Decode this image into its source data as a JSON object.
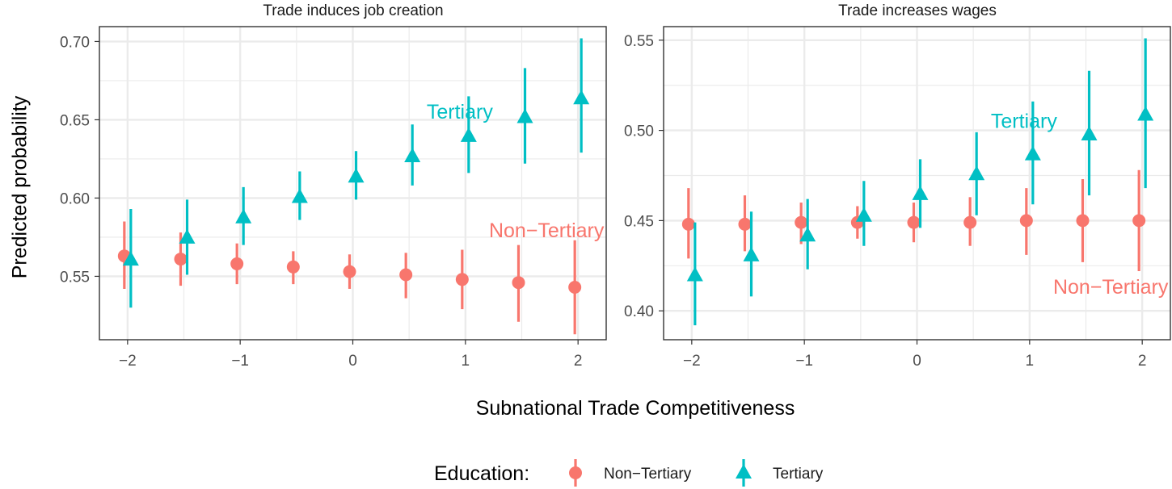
{
  "figure": {
    "ylabel": "Predicted probability",
    "xlabel": "Subnational Trade Competitiveness",
    "legend": {
      "title": "Education:",
      "items": [
        "Non−Tertiary",
        "Tertiary"
      ]
    }
  },
  "colors": {
    "non_tertiary": "#F8766D",
    "tertiary": "#00BFC4",
    "grid": "#EBEBEB",
    "frame": "#333333",
    "text": "#1A1A1A",
    "ticks": "#4D4D4D"
  },
  "chart_data": [
    {
      "type": "scatter",
      "title": "Trade induces job creation",
      "xlabel": "Subnational Trade Competitiveness",
      "ylabel": "Predicted probability",
      "xlim": [
        -2.25,
        2.25
      ],
      "ylim": [
        0.5095,
        0.7095
      ],
      "xticks": [
        -2,
        -1,
        0,
        1,
        2
      ],
      "xtick_labels": [
        "−2",
        "−1",
        "0",
        "1",
        "2"
      ],
      "yticks": [
        0.55,
        0.6,
        0.65,
        0.7
      ],
      "ytick_labels": [
        "0.55",
        "0.60",
        "0.65",
        "0.70"
      ],
      "grid": true,
      "x": [
        -2,
        -1.5,
        -1,
        -0.5,
        0,
        0.5,
        1,
        1.5,
        2
      ],
      "series": [
        {
          "name": "Non−Tertiary",
          "marker": "circle",
          "values": [
            0.563,
            0.561,
            0.558,
            0.556,
            0.553,
            0.551,
            0.548,
            0.546,
            0.543
          ],
          "lower": [
            0.542,
            0.544,
            0.545,
            0.545,
            0.542,
            0.536,
            0.529,
            0.521,
            0.513
          ],
          "upper": [
            0.585,
            0.578,
            0.571,
            0.566,
            0.564,
            0.565,
            0.567,
            0.57,
            0.573
          ]
        },
        {
          "name": "Tertiary",
          "marker": "triangle",
          "values": [
            0.561,
            0.575,
            0.588,
            0.601,
            0.614,
            0.627,
            0.64,
            0.652,
            0.664
          ],
          "lower": [
            0.53,
            0.551,
            0.57,
            0.586,
            0.599,
            0.608,
            0.616,
            0.622,
            0.629
          ],
          "upper": [
            0.593,
            0.599,
            0.607,
            0.617,
            0.63,
            0.647,
            0.665,
            0.683,
            0.702
          ]
        }
      ],
      "annotations": [
        {
          "text": "Tertiary",
          "x": 0.95,
          "y": 0.6555,
          "series": "Tertiary"
        },
        {
          "text": "Non−Tertiary",
          "x": 1.72,
          "y": 0.5795,
          "series": "Non−Tertiary"
        }
      ]
    },
    {
      "type": "scatter",
      "title": "Trade increases wages",
      "xlabel": "Subnational Trade Competitiveness",
      "ylabel": "Predicted probability",
      "xlim": [
        -2.25,
        2.25
      ],
      "ylim": [
        0.384,
        0.5575
      ],
      "xticks": [
        -2,
        -1,
        0,
        1,
        2
      ],
      "xtick_labels": [
        "−2",
        "−1",
        "0",
        "1",
        "2"
      ],
      "yticks": [
        0.4,
        0.45,
        0.5,
        0.55
      ],
      "ytick_labels": [
        "0.40",
        "0.45",
        "0.50",
        "0.55"
      ],
      "grid": true,
      "x": [
        -2,
        -1.5,
        -1,
        -0.5,
        0,
        0.5,
        1,
        1.5,
        2
      ],
      "series": [
        {
          "name": "Non−Tertiary",
          "marker": "circle",
          "values": [
            0.448,
            0.448,
            0.449,
            0.449,
            0.449,
            0.449,
            0.45,
            0.45,
            0.45
          ],
          "lower": [
            0.429,
            0.433,
            0.437,
            0.44,
            0.438,
            0.436,
            0.431,
            0.427,
            0.422
          ],
          "upper": [
            0.468,
            0.464,
            0.46,
            0.458,
            0.46,
            0.463,
            0.468,
            0.473,
            0.478
          ]
        },
        {
          "name": "Tertiary",
          "marker": "triangle",
          "values": [
            0.42,
            0.431,
            0.442,
            0.453,
            0.465,
            0.476,
            0.487,
            0.498,
            0.509
          ],
          "lower": [
            0.392,
            0.408,
            0.423,
            0.436,
            0.446,
            0.453,
            0.459,
            0.464,
            0.468
          ],
          "upper": [
            0.449,
            0.455,
            0.462,
            0.472,
            0.484,
            0.499,
            0.516,
            0.533,
            0.551
          ]
        }
      ],
      "annotations": [
        {
          "text": "Tertiary",
          "x": 0.95,
          "y": 0.5055,
          "series": "Tertiary"
        },
        {
          "text": "Non−Tertiary",
          "x": 1.72,
          "y": 0.4135,
          "series": "Non−Tertiary"
        }
      ]
    }
  ]
}
